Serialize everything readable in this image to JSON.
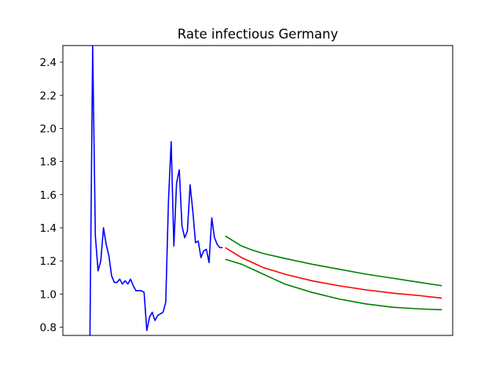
{
  "chart_data": {
    "type": "line",
    "title": "Rate infectious Germany",
    "xlabel": "",
    "ylabel": "",
    "ylim": [
      0.75,
      2.5
    ],
    "xlim": [
      -1,
      71
    ],
    "yticks": [
      0.8,
      1.0,
      1.2,
      1.4,
      1.6,
      1.8,
      2.0,
      2.2,
      2.4
    ],
    "ytick_labels": [
      "0.8",
      "1.0",
      "1.2",
      "1.4",
      "1.6",
      "1.8",
      "2.0",
      "2.2",
      "2.4"
    ],
    "xticks_shown": false,
    "grid": false,
    "legend": "none",
    "series": [
      {
        "color": "#0000ff",
        "x": [
          4,
          4.5,
          5,
          5.5,
          6,
          6.5,
          7,
          7.5,
          8,
          8.5,
          9,
          9.5,
          10,
          10.5,
          11,
          11.5,
          12,
          12.5,
          13,
          13.5,
          14,
          14.5,
          15,
          15.5,
          16,
          16.5,
          17,
          17.5,
          18,
          18.5,
          19,
          19.5,
          20,
          20.5,
          21,
          21.5,
          22,
          22.5,
          23,
          23.5,
          24,
          24.5,
          25,
          25.5,
          26,
          26.5,
          27,
          27.5,
          28,
          28.5,
          29,
          29.5,
          30
        ],
        "y": [
          0.75,
          2.5,
          1.35,
          1.14,
          1.2,
          1.4,
          1.3,
          1.23,
          1.11,
          1.07,
          1.07,
          1.09,
          1.06,
          1.08,
          1.06,
          1.09,
          1.05,
          1.02,
          1.02,
          1.02,
          1.01,
          0.78,
          0.86,
          0.89,
          0.84,
          0.87,
          0.88,
          0.89,
          0.95,
          1.56,
          1.92,
          1.29,
          1.67,
          1.75,
          1.41,
          1.34,
          1.38,
          1.66,
          1.5,
          1.31,
          1.32,
          1.22,
          1.26,
          1.27,
          1.19,
          1.46,
          1.34,
          1.3,
          1.28,
          1.28,
          null,
          null,
          null
        ]
      },
      {
        "color": "#ff0000",
        "x": [
          29,
          30,
          32,
          34,
          36,
          38,
          40,
          45,
          50,
          55,
          60,
          65,
          69
        ],
        "y": [
          1.28,
          1.26,
          1.22,
          1.19,
          1.16,
          1.14,
          1.12,
          1.08,
          1.05,
          1.025,
          1.005,
          0.99,
          0.975
        ]
      },
      {
        "color": "#008000",
        "x": [
          29,
          30,
          32,
          34,
          36,
          38,
          40,
          45,
          50,
          55,
          60,
          65,
          69
        ],
        "y": [
          1.35,
          1.33,
          1.29,
          1.265,
          1.245,
          1.23,
          1.215,
          1.18,
          1.15,
          1.12,
          1.095,
          1.07,
          1.05
        ]
      },
      {
        "color": "#008000",
        "x": [
          29,
          30,
          32,
          34,
          36,
          38,
          40,
          45,
          50,
          55,
          60,
          65,
          69
        ],
        "y": [
          1.21,
          1.2,
          1.18,
          1.15,
          1.12,
          1.09,
          1.06,
          1.01,
          0.97,
          0.94,
          0.92,
          0.91,
          0.905
        ]
      }
    ]
  }
}
